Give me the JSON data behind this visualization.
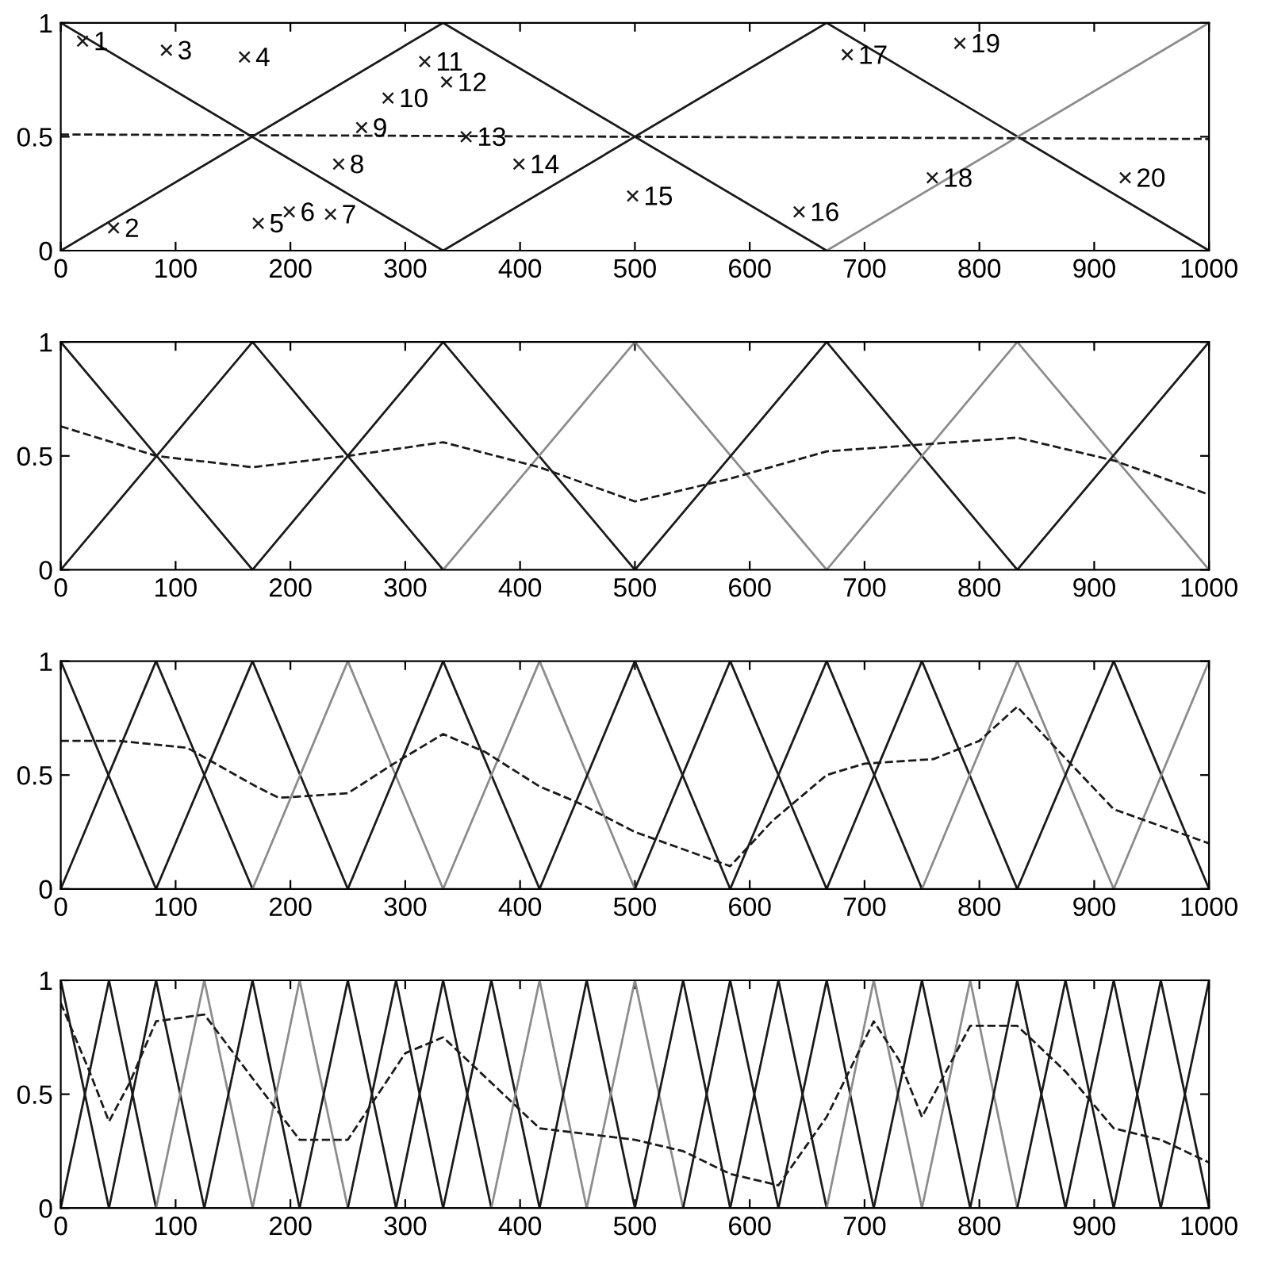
{
  "chart_data": [
    {
      "type": "line",
      "xlim": [
        0,
        1000
      ],
      "ylim": [
        0,
        1
      ],
      "xticks": [
        0,
        100,
        200,
        300,
        400,
        500,
        600,
        700,
        800,
        900,
        1000
      ],
      "yticks": [
        0,
        0.5,
        1
      ],
      "grid": false,
      "series": [
        {
          "color": "#1a1a1a",
          "x": [
            0,
            333
          ],
          "values": [
            1,
            0
          ]
        },
        {
          "color": "#1a1a1a",
          "x": [
            0,
            333,
            667
          ],
          "values": [
            0,
            1,
            0
          ]
        },
        {
          "color": "#1a1a1a",
          "x": [
            333,
            667,
            1000
          ],
          "values": [
            0,
            1,
            0
          ]
        },
        {
          "color": "#8c8c8c",
          "x": [
            667,
            1000
          ],
          "values": [
            0,
            1
          ]
        },
        {
          "color": "#1a1a1a",
          "line_style": "dashed",
          "x": [
            0,
            500,
            1000
          ],
          "values": [
            0.51,
            0.5,
            0.49
          ]
        },
        {
          "type": "scatter",
          "marker": "cross",
          "color": "#1a1a1a",
          "x": [
            19,
            46,
            92,
            160,
            172,
            199,
            235,
            242,
            262,
            285,
            317,
            336,
            353,
            399,
            498,
            643,
            685,
            759,
            783,
            927
          ],
          "values": [
            0.92,
            0.1,
            0.88,
            0.85,
            0.12,
            0.17,
            0.16,
            0.38,
            0.54,
            0.67,
            0.83,
            0.74,
            0.5,
            0.38,
            0.24,
            0.17,
            0.86,
            0.32,
            0.91,
            0.32
          ]
        }
      ],
      "annotations": [
        {
          "text": "1",
          "x": 19,
          "y": 0.92
        },
        {
          "text": "2",
          "x": 46,
          "y": 0.1
        },
        {
          "text": "3",
          "x": 92,
          "y": 0.88
        },
        {
          "text": "4",
          "x": 160,
          "y": 0.85
        },
        {
          "text": "5",
          "x": 172,
          "y": 0.12
        },
        {
          "text": "6",
          "x": 199,
          "y": 0.17
        },
        {
          "text": "7",
          "x": 235,
          "y": 0.16
        },
        {
          "text": "8",
          "x": 242,
          "y": 0.38
        },
        {
          "text": "9",
          "x": 262,
          "y": 0.54
        },
        {
          "text": "10",
          "x": 285,
          "y": 0.67
        },
        {
          "text": "11",
          "x": 317,
          "y": 0.83
        },
        {
          "text": "12",
          "x": 336,
          "y": 0.74
        },
        {
          "text": "13",
          "x": 353,
          "y": 0.5
        },
        {
          "text": "14",
          "x": 399,
          "y": 0.38
        },
        {
          "text": "15",
          "x": 498,
          "y": 0.24
        },
        {
          "text": "16",
          "x": 643,
          "y": 0.17
        },
        {
          "text": "17",
          "x": 685,
          "y": 0.86
        },
        {
          "text": "18",
          "x": 759,
          "y": 0.32
        },
        {
          "text": "19",
          "x": 783,
          "y": 0.91
        },
        {
          "text": "20",
          "x": 927,
          "y": 0.32
        }
      ]
    },
    {
      "type": "line",
      "xlim": [
        0,
        1000
      ],
      "ylim": [
        0,
        1
      ],
      "xticks": [
        0,
        100,
        200,
        300,
        400,
        500,
        600,
        700,
        800,
        900,
        1000
      ],
      "yticks": [
        0,
        0.5,
        1
      ],
      "grid": false,
      "series": [
        {
          "color": "#1a1a1a",
          "x": [
            0,
            167
          ],
          "values": [
            1,
            0
          ]
        },
        {
          "color": "#1a1a1a",
          "x": [
            0,
            167,
            333
          ],
          "values": [
            0,
            1,
            0
          ]
        },
        {
          "color": "#1a1a1a",
          "x": [
            167,
            333,
            500
          ],
          "values": [
            0,
            1,
            0
          ]
        },
        {
          "color": "#8c8c8c",
          "x": [
            333,
            500,
            667
          ],
          "values": [
            0,
            1,
            0
          ]
        },
        {
          "color": "#1a1a1a",
          "x": [
            500,
            667,
            833
          ],
          "values": [
            0,
            1,
            0
          ]
        },
        {
          "color": "#8c8c8c",
          "x": [
            667,
            833,
            1000
          ],
          "values": [
            0,
            1,
            0
          ]
        },
        {
          "color": "#1a1a1a",
          "x": [
            833,
            1000
          ],
          "values": [
            0,
            1
          ]
        },
        {
          "color": "#1a1a1a",
          "line_style": "dashed",
          "x": [
            0,
            83,
            167,
            250,
            333,
            417,
            500,
            583,
            667,
            750,
            833,
            917,
            1000
          ],
          "values": [
            0.63,
            0.5,
            0.45,
            0.5,
            0.56,
            0.45,
            0.3,
            0.4,
            0.52,
            0.55,
            0.58,
            0.48,
            0.33
          ]
        }
      ]
    },
    {
      "type": "line",
      "xlim": [
        0,
        1000
      ],
      "ylim": [
        0,
        1
      ],
      "xticks": [
        0,
        100,
        200,
        300,
        400,
        500,
        600,
        700,
        800,
        900,
        1000
      ],
      "yticks": [
        0,
        0.5,
        1
      ],
      "grid": false,
      "series": [
        {
          "color": "#1a1a1a",
          "x": [
            0,
            83
          ],
          "values": [
            1,
            0
          ]
        },
        {
          "color": "#1a1a1a",
          "x": [
            0,
            83,
            167
          ],
          "values": [
            0,
            1,
            0
          ]
        },
        {
          "color": "#1a1a1a",
          "x": [
            83,
            167,
            250
          ],
          "values": [
            0,
            1,
            0
          ]
        },
        {
          "color": "#8c8c8c",
          "x": [
            167,
            250,
            333
          ],
          "values": [
            0,
            1,
            0
          ]
        },
        {
          "color": "#1a1a1a",
          "x": [
            250,
            333,
            417
          ],
          "values": [
            0,
            1,
            0
          ]
        },
        {
          "color": "#8c8c8c",
          "x": [
            333,
            417,
            500
          ],
          "values": [
            0,
            1,
            0
          ]
        },
        {
          "color": "#1a1a1a",
          "x": [
            417,
            500,
            583
          ],
          "values": [
            0,
            1,
            0
          ]
        },
        {
          "color": "#1a1a1a",
          "x": [
            500,
            583,
            667
          ],
          "values": [
            0,
            1,
            0
          ]
        },
        {
          "color": "#1a1a1a",
          "x": [
            583,
            667,
            750
          ],
          "values": [
            0,
            1,
            0
          ]
        },
        {
          "color": "#1a1a1a",
          "x": [
            667,
            750,
            833
          ],
          "values": [
            0,
            1,
            0
          ]
        },
        {
          "color": "#8c8c8c",
          "x": [
            750,
            833,
            917
          ],
          "values": [
            0,
            1,
            0
          ]
        },
        {
          "color": "#1a1a1a",
          "x": [
            833,
            917,
            1000
          ],
          "values": [
            0,
            1,
            0
          ]
        },
        {
          "color": "#8c8c8c",
          "x": [
            917,
            1000
          ],
          "values": [
            0,
            1
          ]
        },
        {
          "color": "#1a1a1a",
          "line_style": "dashed",
          "x": [
            0,
            50,
            110,
            170,
            190,
            250,
            290,
            333,
            370,
            417,
            450,
            500,
            583,
            620,
            667,
            700,
            760,
            800,
            833,
            870,
            917,
            1000
          ],
          "values": [
            0.65,
            0.65,
            0.62,
            0.45,
            0.4,
            0.42,
            0.55,
            0.68,
            0.6,
            0.45,
            0.38,
            0.25,
            0.1,
            0.3,
            0.5,
            0.55,
            0.57,
            0.65,
            0.8,
            0.6,
            0.35,
            0.2
          ]
        }
      ]
    },
    {
      "type": "line",
      "xlim": [
        0,
        1000
      ],
      "ylim": [
        0,
        1
      ],
      "xticks": [
        0,
        100,
        200,
        300,
        400,
        500,
        600,
        700,
        800,
        900,
        1000
      ],
      "yticks": [
        0,
        0.5,
        1
      ],
      "grid": false,
      "series": [
        {
          "color": "#1a1a1a",
          "x": [
            0,
            42
          ],
          "values": [
            1,
            0
          ]
        },
        {
          "color": "#1a1a1a",
          "x": [
            0,
            42,
            83
          ],
          "values": [
            0,
            1,
            0
          ]
        },
        {
          "color": "#1a1a1a",
          "x": [
            42,
            83,
            125
          ],
          "values": [
            0,
            1,
            0
          ]
        },
        {
          "color": "#8c8c8c",
          "x": [
            83,
            125,
            167
          ],
          "values": [
            0,
            1,
            0
          ]
        },
        {
          "color": "#1a1a1a",
          "x": [
            125,
            167,
            208
          ],
          "values": [
            0,
            1,
            0
          ]
        },
        {
          "color": "#8c8c8c",
          "x": [
            167,
            208,
            250
          ],
          "values": [
            0,
            1,
            0
          ]
        },
        {
          "color": "#1a1a1a",
          "x": [
            208,
            250,
            292
          ],
          "values": [
            0,
            1,
            0
          ]
        },
        {
          "color": "#1a1a1a",
          "x": [
            250,
            292,
            333
          ],
          "values": [
            0,
            1,
            0
          ]
        },
        {
          "color": "#1a1a1a",
          "x": [
            292,
            333,
            375
          ],
          "values": [
            0,
            1,
            0
          ]
        },
        {
          "color": "#1a1a1a",
          "x": [
            333,
            375,
            417
          ],
          "values": [
            0,
            1,
            0
          ]
        },
        {
          "color": "#8c8c8c",
          "x": [
            375,
            417,
            458
          ],
          "values": [
            0,
            1,
            0
          ]
        },
        {
          "color": "#1a1a1a",
          "x": [
            417,
            458,
            500
          ],
          "values": [
            0,
            1,
            0
          ]
        },
        {
          "color": "#8c8c8c",
          "x": [
            458,
            500,
            542
          ],
          "values": [
            0,
            1,
            0
          ]
        },
        {
          "color": "#1a1a1a",
          "x": [
            500,
            542,
            583
          ],
          "values": [
            0,
            1,
            0
          ]
        },
        {
          "color": "#1a1a1a",
          "x": [
            542,
            583,
            625
          ],
          "values": [
            0,
            1,
            0
          ]
        },
        {
          "color": "#1a1a1a",
          "x": [
            583,
            625,
            667
          ],
          "values": [
            0,
            1,
            0
          ]
        },
        {
          "color": "#1a1a1a",
          "x": [
            625,
            667,
            708
          ],
          "values": [
            0,
            1,
            0
          ]
        },
        {
          "color": "#8c8c8c",
          "x": [
            667,
            708,
            750
          ],
          "values": [
            0,
            1,
            0
          ]
        },
        {
          "color": "#1a1a1a",
          "x": [
            708,
            750,
            792
          ],
          "values": [
            0,
            1,
            0
          ]
        },
        {
          "color": "#8c8c8c",
          "x": [
            750,
            792,
            833
          ],
          "values": [
            0,
            1,
            0
          ]
        },
        {
          "color": "#1a1a1a",
          "x": [
            792,
            833,
            875
          ],
          "values": [
            0,
            1,
            0
          ]
        },
        {
          "color": "#1a1a1a",
          "x": [
            833,
            875,
            917
          ],
          "values": [
            0,
            1,
            0
          ]
        },
        {
          "color": "#1a1a1a",
          "x": [
            875,
            917,
            958
          ],
          "values": [
            0,
            1,
            0
          ]
        },
        {
          "color": "#1a1a1a",
          "x": [
            917,
            958,
            1000
          ],
          "values": [
            0,
            1,
            0
          ]
        },
        {
          "color": "#1a1a1a",
          "x": [
            958,
            1000
          ],
          "values": [
            0,
            1
          ]
        },
        {
          "color": "#1a1a1a",
          "line_style": "dashed",
          "x": [
            0,
            25,
            42,
            60,
            83,
            125,
            170,
            208,
            250,
            300,
            333,
            375,
            417,
            500,
            542,
            583,
            625,
            667,
            708,
            730,
            750,
            792,
            833,
            875,
            917,
            958,
            1000
          ],
          "values": [
            0.9,
            0.6,
            0.38,
            0.55,
            0.82,
            0.85,
            0.55,
            0.3,
            0.3,
            0.68,
            0.75,
            0.55,
            0.35,
            0.3,
            0.25,
            0.15,
            0.1,
            0.4,
            0.82,
            0.65,
            0.4,
            0.8,
            0.8,
            0.6,
            0.35,
            0.3,
            0.2
          ]
        }
      ]
    }
  ]
}
